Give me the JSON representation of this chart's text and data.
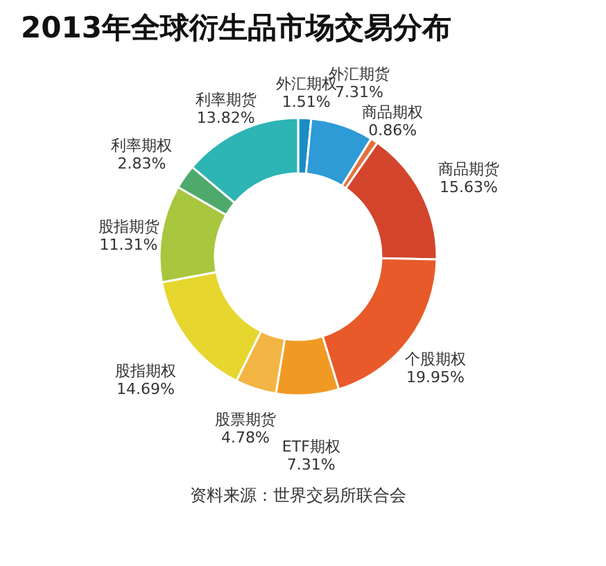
{
  "chart_data": {
    "type": "donut",
    "title": "2013年全球衍生品市场交易分布",
    "categories": [
      "外汇期权",
      "外汇期货",
      "商品期权",
      "商品期货",
      "个股期权",
      "ETF期权",
      "股票期货",
      "股指期权",
      "股指期货",
      "利率期权",
      "利率期货"
    ],
    "values": [
      1.51,
      7.31,
      0.86,
      15.63,
      19.95,
      7.31,
      4.78,
      14.69,
      11.31,
      2.83,
      13.82
    ],
    "value_labels": [
      "1.51%",
      "7.31%",
      "0.86%",
      "15.63%",
      "19.95%",
      "7.31%",
      "4.78%",
      "14.69%",
      "11.31%",
      "2.83%",
      "13.82%"
    ],
    "colors": [
      "#1c8cc4",
      "#2e9ad6",
      "#e5703a",
      "#d2452c",
      "#e85a2a",
      "#f09a24",
      "#f2b443",
      "#e6d62e",
      "#a8c63e",
      "#4daa6c",
      "#2db4b4"
    ],
    "annotations": [
      "资料来源：世界交易所联合会"
    ]
  }
}
